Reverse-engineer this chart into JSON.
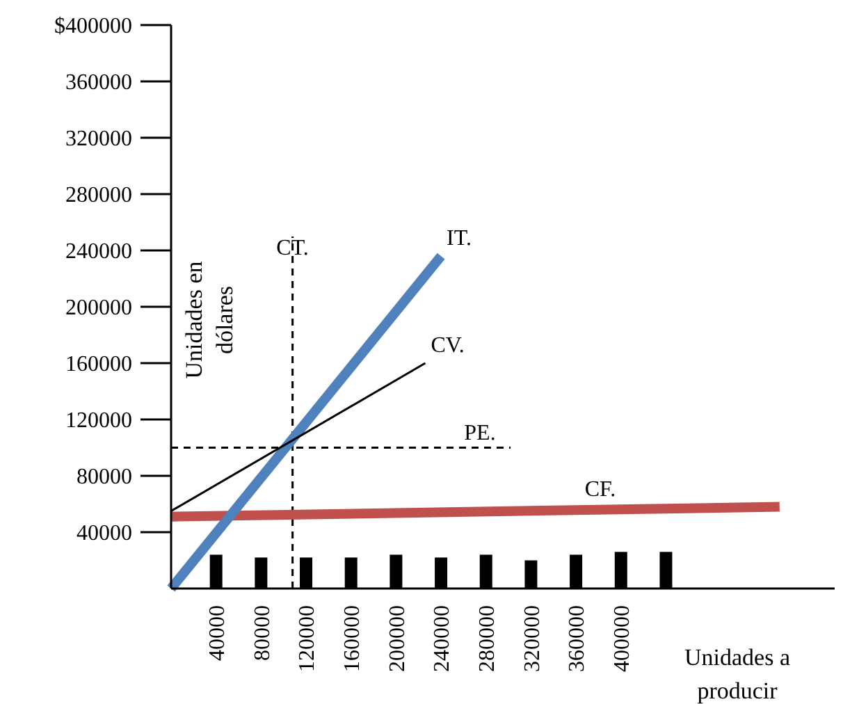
{
  "chart_data": {
    "type": "line",
    "xlabel": "Unidades a producir",
    "ylabel": "Unidades en dólares",
    "xlim": [
      0,
      590000
    ],
    "ylim": [
      0,
      400000
    ],
    "xticks": [
      40000,
      80000,
      120000,
      160000,
      200000,
      240000,
      280000,
      320000,
      360000,
      400000
    ],
    "yticks": [
      40000,
      80000,
      120000,
      160000,
      200000,
      240000,
      280000,
      320000,
      360000,
      {
        "value": 400000,
        "label": "$400000"
      }
    ],
    "series": [
      {
        "type": "bar",
        "color": "#000000",
        "x": [
          40000,
          80000,
          120000,
          160000,
          200000,
          240000,
          280000,
          320000,
          360000,
          400000,
          440000
        ],
        "values": [
          24000,
          22000,
          22000,
          22000,
          24000,
          22000,
          24000,
          20000,
          24000,
          26000,
          26000
        ]
      },
      {
        "name": "CF.",
        "color": "#c0504d",
        "x": [
          0,
          541000
        ],
        "values": [
          51000,
          58000
        ]
      },
      {
        "name": "IT.",
        "color": "#4f81bd",
        "x": [
          0,
          240000
        ],
        "values": [
          0,
          236000
        ]
      },
      {
        "name": "CV.",
        "color": "#000000",
        "x": [
          0,
          226000
        ],
        "values": [
          55000,
          160000
        ]
      }
    ],
    "ref_lines": [
      {
        "axis": "x",
        "value": 108000,
        "label": "CT.",
        "line_style": "dashed",
        "color": "#000000"
      },
      {
        "axis": "y",
        "value": 100000,
        "label": "PE.",
        "line_style": "dashed",
        "color": "#000000"
      }
    ],
    "grid": false,
    "legend": false,
    "marker": "none"
  }
}
